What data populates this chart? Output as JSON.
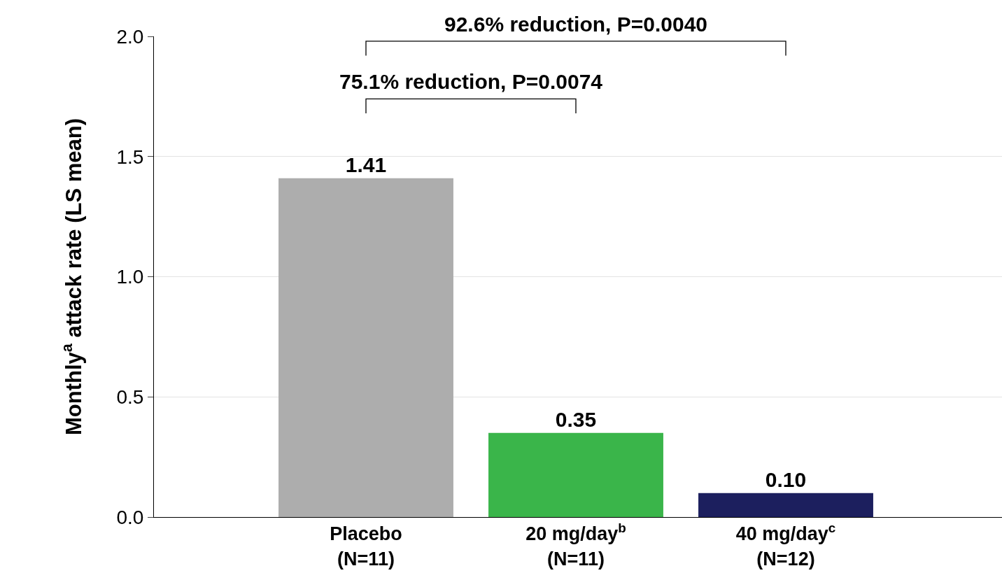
{
  "chart_data": {
    "type": "bar",
    "ylabel": "Monthly$^{a}$ attack rate (LS mean)",
    "categories": [
      "Placebo\n(N=11)",
      "20 mg/day$^{b}$\n(N=11)",
      "40 mg/day$^{c}$\n(N=12)"
    ],
    "values": [
      1.41,
      0.35,
      0.1
    ],
    "colors": [
      "#adadad",
      "#3ab54a",
      "#1c1f5e"
    ],
    "value_labels": [
      "1.41",
      "0.35",
      "0.10"
    ],
    "ylim": [
      0,
      2.0
    ],
    "yticks": [
      {
        "value": 0,
        "label": "0.0"
      },
      {
        "value": 0.5,
        "label": "0.5"
      },
      {
        "value": 1,
        "label": "1.0"
      },
      {
        "value": 1.5,
        "label": "1.5"
      },
      {
        "value": 2,
        "label": "2.0"
      }
    ],
    "grid": "y",
    "annotations": [
      "92.6% reduction, P=0.0040",
      "75.1% reduction, P=0.0074"
    ]
  }
}
